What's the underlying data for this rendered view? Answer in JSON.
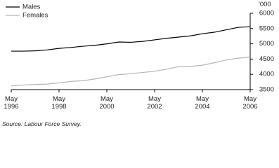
{
  "chart_data": {
    "type": "line",
    "y_unit": "'000",
    "source": "Source: Labour Force Survey.",
    "x": [
      1996.33,
      1996.83,
      1997.33,
      1997.83,
      1998.33,
      1998.83,
      1999.33,
      1999.83,
      2000.33,
      2000.83,
      2001.33,
      2001.83,
      2002.33,
      2002.83,
      2003.33,
      2003.83,
      2004.33,
      2004.83,
      2005.33,
      2005.83,
      2006.33
    ],
    "series": [
      {
        "name": "Males",
        "color": "#000000",
        "values": [
          4760,
          4760,
          4770,
          4800,
          4850,
          4880,
          4920,
          4950,
          5000,
          5060,
          5050,
          5080,
          5130,
          5180,
          5220,
          5260,
          5330,
          5380,
          5460,
          5540,
          5560
        ]
      },
      {
        "name": "Females",
        "color": "#b4b4b4",
        "values": [
          3620,
          3650,
          3670,
          3680,
          3720,
          3770,
          3790,
          3850,
          3920,
          3990,
          4020,
          4060,
          4100,
          4170,
          4250,
          4260,
          4300,
          4380,
          4470,
          4530,
          4560
        ]
      }
    ],
    "xlim": [
      1996.33,
      2006.33
    ],
    "xticks": [
      {
        "value": 1996.33,
        "label": "May 1996"
      },
      {
        "value": 1998.33,
        "label": "May 1998"
      },
      {
        "value": 2000.33,
        "label": "May 2000"
      },
      {
        "value": 2002.33,
        "label": "May 2002"
      },
      {
        "value": 2004.33,
        "label": "May 2004"
      },
      {
        "value": 2006.33,
        "label": "May 2006"
      }
    ],
    "ylim": [
      3500,
      6000
    ],
    "yticks": [
      3500,
      4000,
      4500,
      5000,
      5500,
      6000
    ],
    "legend": "top-left"
  }
}
